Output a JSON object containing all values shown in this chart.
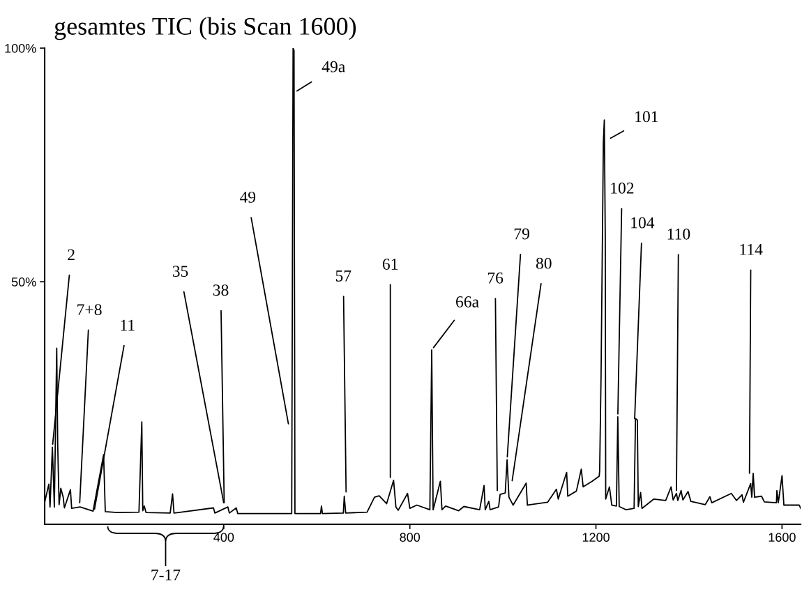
{
  "chart_data": {
    "type": "line",
    "title": "gesamtes TIC (bis Scan 1600)",
    "xlim": [
      15,
      1640
    ],
    "xticks": [
      400,
      800,
      1200,
      1600
    ],
    "ylim": [
      -1.9,
      100
    ],
    "yticks": [
      {
        "value": 50,
        "label": "50%"
      },
      {
        "value": 100,
        "label": "100%"
      }
    ],
    "grid": false,
    "marker": "none",
    "line_style": "solid",
    "series": [
      {
        "color": "#000000",
        "x": [
          15,
          24,
          26.5,
          31.6,
          35.8,
          40.9,
          43,
          46,
          49.7,
          54.8,
          57.4,
          70.4,
          73,
          91,
          119,
          141.7,
          145.3,
          171,
          217.7,
          223.8,
          225.9,
          229,
          233,
          284.8,
          289.9,
          293,
          377.8,
          381,
          408.8,
          412,
          426.8,
          430,
          481,
          546,
          549,
          551,
          553,
          608,
          610,
          612,
          657,
          659,
          662,
          708,
          724,
          734,
          750,
          765,
          770,
          775,
          795,
          800,
          815,
          843,
          847,
          850,
          865.6,
          869,
          877,
          905,
          916,
          950,
          959.5,
          962,
          969.7,
          972.5,
          990.7,
          994,
          1005,
          1009,
          1013,
          1022,
          1050,
          1052.6,
          1096,
          1115,
          1119,
          1137,
          1139.5,
          1158,
          1168.5,
          1172.5,
          1192,
          1207,
          1208,
          1211,
          1213,
          1216,
          1218,
          1220,
          1221,
          1229,
          1234,
          1244,
          1247,
          1250,
          1265,
          1282,
          1285,
          1289,
          1291,
          1296,
          1299,
          1324.5,
          1350,
          1361.5,
          1366,
          1373,
          1376,
          1383,
          1387,
          1398,
          1404,
          1435,
          1445,
          1449,
          1491,
          1502,
          1514,
          1517,
          1532.6,
          1535,
          1538,
          1541,
          1556,
          1562,
          1588,
          1589,
          1592,
          1600,
          1604,
          1637,
          1640
        ],
        "values": [
          2.8,
          6.7,
          1.8,
          14.6,
          1.8,
          35.8,
          15.2,
          2.3,
          5.8,
          3.9,
          1.6,
          5.5,
          1.5,
          1.8,
          0.9,
          13.0,
          0.8,
          0.6,
          0.7,
          20.0,
          1.0,
          2.0,
          0.6,
          0.5,
          4.6,
          0.5,
          1.6,
          0.5,
          1.8,
          0.5,
          1.6,
          0.4,
          0.4,
          0.4,
          100,
          99.5,
          0.4,
          0.4,
          2.0,
          0.4,
          0.5,
          4.1,
          0.5,
          0.7,
          3.9,
          4.2,
          2.5,
          7.5,
          1.8,
          1.1,
          4.7,
          1.5,
          2.2,
          1.2,
          35.4,
          1.2,
          7.3,
          1.2,
          2.0,
          1.0,
          1.9,
          1.2,
          6.4,
          1.2,
          3.0,
          1.2,
          1.8,
          4.5,
          4.8,
          11.9,
          3.9,
          2.2,
          6.9,
          2.2,
          2.8,
          5.6,
          3.5,
          9.2,
          4.1,
          5.2,
          9.9,
          6.1,
          7.3,
          8.4,
          9.5,
          30,
          50,
          80,
          84.6,
          60,
          3.5,
          6.1,
          2.2,
          2.0,
          21.1,
          1.9,
          1.2,
          1.5,
          20.7,
          20.4,
          1.9,
          4.9,
          1.5,
          3.5,
          3.2,
          6.1,
          3.3,
          4.7,
          3.2,
          5.3,
          3.3,
          5.1,
          3.0,
          2.3,
          4.0,
          2.7,
          4.7,
          3.2,
          4.4,
          2.8,
          6.8,
          3.9,
          9.0,
          3.9,
          4.1,
          2.9,
          2.7,
          5.3,
          2.7,
          8.5,
          2.2,
          2.2,
          1.5
        ]
      }
    ],
    "annotations": [
      {
        "text": "2",
        "x": 31.6,
        "y": 14.6
      },
      {
        "text": "7+8",
        "x": 90,
        "y": 2.1
      },
      {
        "text": "11",
        "x": 121,
        "y": 0.7
      },
      {
        "text": "35",
        "x": 401,
        "y": 2.1
      },
      {
        "text": "38",
        "x": 401,
        "y": 2.1
      },
      {
        "text": "49",
        "x": 540,
        "y": 19.0
      },
      {
        "text": "49a",
        "x": 552,
        "y": 90.5
      },
      {
        "text": "57",
        "x": 663,
        "y": 4.4
      },
      {
        "text": "61",
        "x": 758,
        "y": 7.5
      },
      {
        "text": "66a",
        "x": 847,
        "y": 35.4
      },
      {
        "text": "76",
        "x": 988,
        "y": 4.7
      },
      {
        "text": "79",
        "x": 1009,
        "y": 11.9
      },
      {
        "text": "80",
        "x": 1019,
        "y": 6.8
      },
      {
        "text": "101",
        "x": 1226,
        "y": 80.4
      },
      {
        "text": "102",
        "x": 1247,
        "y": 21.1
      },
      {
        "text": "104",
        "x": 1283,
        "y": 20.1
      },
      {
        "text": "110",
        "x": 1373,
        "y": 4.7
      },
      {
        "text": "114",
        "x": 1530,
        "y": 8.4
      },
      "7-17"
    ]
  }
}
